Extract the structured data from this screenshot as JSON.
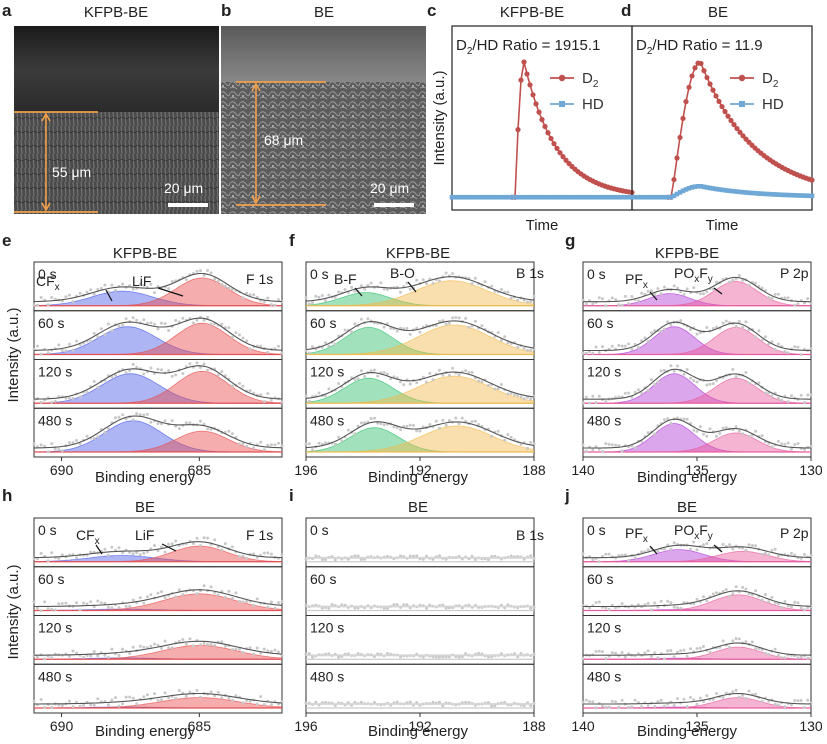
{
  "panels": {
    "a": {
      "letter": "a",
      "title": "KFPB-BE",
      "thickness": "55 μm",
      "scale": "20 μm"
    },
    "b": {
      "letter": "b",
      "title": "BE",
      "thickness": "68 μm",
      "scale": "20 μm"
    },
    "c": {
      "letter": "c",
      "title": "KFPB-BE"
    },
    "d": {
      "letter": "d",
      "title": "BE"
    },
    "e": {
      "letter": "e",
      "title": "KFPB-BE"
    },
    "f": {
      "letter": "f",
      "title": "KFPB-BE"
    },
    "g": {
      "letter": "g",
      "title": "KFPB-BE"
    },
    "h": {
      "letter": "h",
      "title": "BE"
    },
    "i": {
      "letter": "i",
      "title": "BE"
    },
    "j": {
      "letter": "j",
      "title": "BE"
    }
  },
  "labels": {
    "binding_energy": "Binding energy",
    "intensity_au": "Intensity (a.u.)",
    "time": "Time",
    "intensity_au_short": "Intensity (a.u.)"
  },
  "annotations": {
    "e": {
      "region": "F 1s",
      "peak1": "CF",
      "peak1_sub": "x",
      "peak2": "LiF"
    },
    "f": {
      "region": "B 1s",
      "peak1": "B-F",
      "peak2": "B-O"
    },
    "g": {
      "region": "P 2p",
      "peak1": "PF",
      "peak1_sub": "x",
      "peak2_a": "PO",
      "peak2_sub1": "x",
      "peak2_b": "F",
      "peak2_sub2": "y"
    },
    "h": {
      "region": "F 1s",
      "peak1": "CF",
      "peak1_sub": "x",
      "peak2": "LiF"
    },
    "i": {
      "region": "B 1s"
    },
    "j": {
      "region": "P 2p",
      "peak1": "PF",
      "peak1_sub": "x",
      "peak2_a": "PO",
      "peak2_sub1": "x",
      "peak2_b": "F",
      "peak2_sub2": "y"
    }
  },
  "ratio_text": {
    "c": {
      "prefix": "D",
      "sub": "2",
      "suffix": "/HD Ratio = 1915.1"
    },
    "d": {
      "prefix": "D",
      "sub": "2",
      "suffix": "/HD Ratio = 11.9"
    }
  },
  "row_times": [
    "0 s",
    "60 s",
    "120 s",
    "480 s"
  ],
  "colors": {
    "d2": "#c0504d",
    "hd": "#6fa8d6",
    "blue": "#4a5be8",
    "red": "#e84a4a",
    "green": "#2fbf6a",
    "orange": "#f2b84a",
    "purple": "#b23ad8",
    "pink": "#e8589a",
    "grey": "#555555",
    "orange_line": "#f0a04b"
  },
  "chart_data": [
    {
      "panel": "c",
      "type": "line",
      "title": "KFPB-BE",
      "xlabel": "Time",
      "ylabel": "Intensity (a.u.)",
      "ratio": 1915.1,
      "series": [
        {
          "name": "D2",
          "legend_main": "D",
          "legend_sub": "2",
          "shape": {
            "baseline": 2,
            "onset": 0.35,
            "peak_x": 0.4,
            "peak": 100,
            "decay": 0.18
          }
        },
        {
          "name": "HD",
          "legend_main": "HD",
          "legend_sub": "",
          "shape": {
            "baseline": 2,
            "onset": 0.35,
            "peak_x": 0.4,
            "peak": 2,
            "decay": 0.2
          }
        }
      ],
      "ylim": [
        0,
        100
      ]
    },
    {
      "panel": "d",
      "type": "line",
      "title": "BE",
      "xlabel": "Time",
      "ylabel": "",
      "ratio": 11.9,
      "series": [
        {
          "name": "D2",
          "legend_main": "D",
          "legend_sub": "2",
          "shape": {
            "baseline": 2,
            "onset": 0.22,
            "peak_x": 0.38,
            "peak": 100,
            "decay": 0.3
          }
        },
        {
          "name": "HD",
          "legend_main": "HD",
          "legend_sub": "",
          "shape": {
            "baseline": 2,
            "onset": 0.22,
            "peak_x": 0.38,
            "peak": 10,
            "decay": 0.3
          }
        }
      ],
      "ylim": [
        0,
        100
      ]
    },
    {
      "panel": "e",
      "type": "line",
      "region": "F 1s",
      "xlabel": "Binding energy",
      "xlim": [
        691,
        682
      ],
      "xticks": [
        690,
        685
      ],
      "rows": [
        {
          "time": "0 s",
          "peaks": [
            {
              "name": "CFx",
              "center": 687.8,
              "height": 0.42,
              "width": 1.1,
              "color": "#4a5be8"
            },
            {
              "name": "LiF",
              "center": 684.9,
              "height": 0.8,
              "width": 0.95,
              "color": "#e84a4a"
            }
          ]
        },
        {
          "time": "60 s",
          "peaks": [
            {
              "name": "CFx",
              "center": 687.6,
              "height": 0.8,
              "width": 1.05,
              "color": "#4a5be8"
            },
            {
              "name": "LiF",
              "center": 684.9,
              "height": 0.9,
              "width": 0.95,
              "color": "#e84a4a"
            }
          ]
        },
        {
          "time": "120 s",
          "peaks": [
            {
              "name": "CFx",
              "center": 687.5,
              "height": 0.85,
              "width": 1.05,
              "color": "#4a5be8"
            },
            {
              "name": "LiF",
              "center": 684.9,
              "height": 0.92,
              "width": 0.95,
              "color": "#e84a4a"
            }
          ]
        },
        {
          "time": "480 s",
          "peaks": [
            {
              "name": "CFx",
              "center": 687.4,
              "height": 0.9,
              "width": 1.05,
              "color": "#4a5be8"
            },
            {
              "name": "LiF",
              "center": 684.9,
              "height": 0.6,
              "width": 0.95,
              "color": "#e84a4a"
            }
          ]
        }
      ]
    },
    {
      "panel": "f",
      "type": "line",
      "region": "B 1s",
      "xlabel": "Binding energy",
      "xlim": [
        196,
        188
      ],
      "xticks": [
        196,
        192,
        188
      ],
      "rows": [
        {
          "time": "0 s",
          "peaks": [
            {
              "name": "B-F",
              "center": 193.9,
              "height": 0.38,
              "width": 0.85,
              "color": "#2fbf6a"
            },
            {
              "name": "B-O",
              "center": 190.9,
              "height": 0.72,
              "width": 1.25,
              "color": "#f2b84a"
            }
          ]
        },
        {
          "time": "60 s",
          "peaks": [
            {
              "name": "B-F",
              "center": 193.8,
              "height": 0.78,
              "width": 0.85,
              "color": "#2fbf6a"
            },
            {
              "name": "B-O",
              "center": 190.8,
              "height": 0.85,
              "width": 1.25,
              "color": "#f2b84a"
            }
          ]
        },
        {
          "time": "120 s",
          "peaks": [
            {
              "name": "B-F",
              "center": 193.8,
              "height": 0.72,
              "width": 0.85,
              "color": "#2fbf6a"
            },
            {
              "name": "B-O",
              "center": 190.8,
              "height": 0.78,
              "width": 1.25,
              "color": "#f2b84a"
            }
          ]
        },
        {
          "time": "480 s",
          "peaks": [
            {
              "name": "B-F",
              "center": 193.6,
              "height": 0.7,
              "width": 0.85,
              "color": "#2fbf6a"
            },
            {
              "name": "B-O",
              "center": 190.7,
              "height": 0.75,
              "width": 1.25,
              "color": "#f2b84a"
            }
          ]
        }
      ]
    },
    {
      "panel": "g",
      "type": "line",
      "region": "P 2p",
      "xlabel": "Binding energy",
      "xlim": [
        140,
        130
      ],
      "xticks": [
        140,
        135,
        130
      ],
      "rows": [
        {
          "time": "0 s",
          "peaks": [
            {
              "name": "PFx",
              "center": 136.2,
              "height": 0.35,
              "width": 0.9,
              "color": "#b23ad8"
            },
            {
              "name": "POxFy",
              "center": 133.3,
              "height": 0.7,
              "width": 0.95,
              "color": "#e8589a"
            }
          ]
        },
        {
          "time": "60 s",
          "peaks": [
            {
              "name": "PFx",
              "center": 136.0,
              "height": 0.8,
              "width": 0.9,
              "color": "#b23ad8"
            },
            {
              "name": "POxFy",
              "center": 133.3,
              "height": 0.78,
              "width": 0.95,
              "color": "#e8589a"
            }
          ]
        },
        {
          "time": "120 s",
          "peaks": [
            {
              "name": "PFx",
              "center": 136.0,
              "height": 0.85,
              "width": 0.9,
              "color": "#b23ad8"
            },
            {
              "name": "POxFy",
              "center": 133.3,
              "height": 0.72,
              "width": 0.95,
              "color": "#e8589a"
            }
          ]
        },
        {
          "time": "480 s",
          "peaks": [
            {
              "name": "PFx",
              "center": 136.0,
              "height": 0.82,
              "width": 0.9,
              "color": "#b23ad8"
            },
            {
              "name": "POxFy",
              "center": 133.3,
              "height": 0.55,
              "width": 0.95,
              "color": "#e8589a"
            }
          ]
        }
      ]
    },
    {
      "panel": "h",
      "type": "line",
      "region": "F 1s",
      "xlabel": "Binding energy",
      "xlim": [
        691,
        682
      ],
      "xticks": [
        690,
        685
      ],
      "rows": [
        {
          "time": "0 s",
          "peaks": [
            {
              "name": "CFx",
              "center": 687.8,
              "height": 0.18,
              "width": 1.2,
              "color": "#4a5be8"
            },
            {
              "name": "LiF",
              "center": 685.0,
              "height": 0.45,
              "width": 1.0,
              "color": "#e84a4a"
            }
          ]
        },
        {
          "time": "60 s",
          "peaks": [
            {
              "name": "CFx",
              "center": 687.8,
              "height": 0.04,
              "width": 1.2,
              "color": "#4a5be8"
            },
            {
              "name": "LiF",
              "center": 685.0,
              "height": 0.48,
              "width": 1.3,
              "color": "#e84a4a"
            }
          ]
        },
        {
          "time": "120 s",
          "peaks": [
            {
              "name": "CFx",
              "center": 687.8,
              "height": 0.04,
              "width": 1.2,
              "color": "#4a5be8"
            },
            {
              "name": "LiF",
              "center": 685.0,
              "height": 0.4,
              "width": 1.35,
              "color": "#e84a4a"
            }
          ]
        },
        {
          "time": "480 s",
          "peaks": [
            {
              "name": "CFx",
              "center": 687.8,
              "height": 0.03,
              "width": 1.2,
              "color": "#4a5be8"
            },
            {
              "name": "LiF",
              "center": 685.0,
              "height": 0.3,
              "width": 1.4,
              "color": "#e84a4a"
            }
          ]
        }
      ]
    },
    {
      "panel": "i",
      "type": "line",
      "region": "B 1s",
      "xlabel": "Binding energy",
      "xlim": [
        196,
        188
      ],
      "xticks": [
        196,
        192,
        188
      ],
      "rows": [
        {
          "time": "0 s",
          "peaks": []
        },
        {
          "time": "60 s",
          "peaks": []
        },
        {
          "time": "120 s",
          "peaks": []
        },
        {
          "time": "480 s",
          "peaks": []
        }
      ]
    },
    {
      "panel": "j",
      "type": "line",
      "region": "P 2p",
      "xlabel": "Binding energy",
      "xlim": [
        140,
        130
      ],
      "xticks": [
        140,
        135,
        130
      ],
      "rows": [
        {
          "time": "0 s",
          "peaks": [
            {
              "name": "PFx",
              "center": 135.8,
              "height": 0.35,
              "width": 1.1,
              "color": "#b23ad8"
            },
            {
              "name": "POxFy",
              "center": 133.0,
              "height": 0.3,
              "width": 1.1,
              "color": "#e8589a"
            }
          ]
        },
        {
          "time": "60 s",
          "peaks": [
            {
              "name": "PFx",
              "center": 135.8,
              "height": 0.03,
              "width": 1.1,
              "color": "#b23ad8"
            },
            {
              "name": "POxFy",
              "center": 133.2,
              "height": 0.45,
              "width": 1.1,
              "color": "#e8589a"
            }
          ]
        },
        {
          "time": "120 s",
          "peaks": [
            {
              "name": "PFx",
              "center": 135.8,
              "height": 0.03,
              "width": 1.1,
              "color": "#b23ad8"
            },
            {
              "name": "POxFy",
              "center": 133.2,
              "height": 0.35,
              "width": 1.0,
              "color": "#e8589a"
            }
          ]
        },
        {
          "time": "480 s",
          "peaks": [
            {
              "name": "PFx",
              "center": 135.8,
              "height": 0.03,
              "width": 1.1,
              "color": "#b23ad8"
            },
            {
              "name": "POxFy",
              "center": 133.2,
              "height": 0.3,
              "width": 1.0,
              "color": "#e8589a"
            }
          ]
        }
      ]
    }
  ]
}
